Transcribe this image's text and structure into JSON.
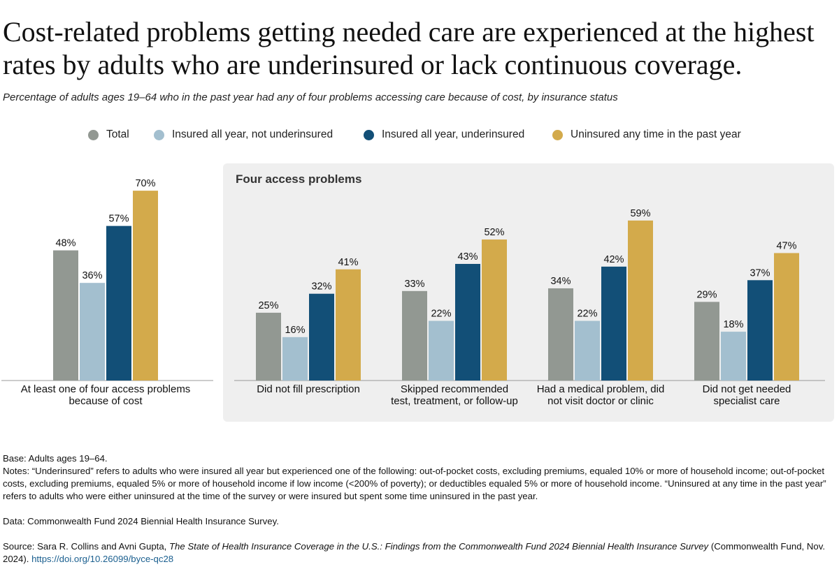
{
  "title": "Cost-related problems getting needed care are experienced at the highest rates by adults who are underinsured or lack continuous coverage.",
  "subtitle": "Percentage of adults ages 19–64 who in the past year had any of four problems accessing care because of cost, by insurance status",
  "legend": [
    {
      "label": "Total",
      "color": "#929892"
    },
    {
      "label": "Insured all year, not underinsured",
      "color": "#a3bfcf"
    },
    {
      "label": "Insured all year, underinsured",
      "color": "#124f77"
    },
    {
      "label": "Uninsured any time in the past year",
      "color": "#d3aa4b"
    }
  ],
  "panel_title": "Four access problems",
  "chart_data": {
    "type": "bar",
    "title": "Cost-related problems getting needed care are experienced at the highest rates by adults who are underinsured or lack continuous coverage.",
    "ylim": [
      0,
      75
    ],
    "value_suffix": "%",
    "categories": [
      [
        "At least one of four access problems",
        "because of cost"
      ],
      [
        "Did not fill prescription"
      ],
      [
        "Skipped recommended",
        "test, treatment, or follow-up"
      ],
      [
        "Had a medical problem, did",
        "not visit doctor or clinic"
      ],
      [
        "Did not get needed",
        "specialist care"
      ]
    ],
    "series": [
      {
        "name": "Total",
        "color": "#929892",
        "values": [
          48,
          25,
          33,
          34,
          29
        ]
      },
      {
        "name": "Insured all year, not underinsured",
        "color": "#a3bfcf",
        "values": [
          36,
          16,
          22,
          22,
          18
        ]
      },
      {
        "name": "Insured all year, underinsured",
        "color": "#124f77",
        "values": [
          57,
          32,
          43,
          42,
          37
        ]
      },
      {
        "name": "Uninsured any time in the past year",
        "color": "#d3aa4b",
        "values": [
          70,
          41,
          52,
          59,
          47
        ]
      }
    ]
  },
  "notes": {
    "base": "Base: Adults ages 19–64.",
    "notes": "Notes: “Underinsured” refers to adults who were insured all year but experienced one of the following: out-of-pocket costs, excluding premiums, equaled 10% or more of household income; out-of-pocket costs, excluding premiums, equaled 5% or more of household income if low income (<200% of poverty); or deductibles equaled 5% or more of household income. “Uninsured at any time in the past year” refers to adults who were either uninsured at the time of the survey or were insured but spent some time uninsured in the past year.",
    "data": "Data: Commonwealth Fund 2024 Biennial Health Insurance Survey.",
    "source_prefix": "Source: Sara R. Collins and Avni Gupta, ",
    "source_title": "The State of Health Insurance Coverage in the U.S.: Findings from the Commonwealth Fund 2024 Biennial Health Insurance Survey",
    "source_suffix": " (Commonwealth Fund, Nov. 2024). ",
    "source_link": "https://doi.org/10.26099/byce-qc28"
  }
}
